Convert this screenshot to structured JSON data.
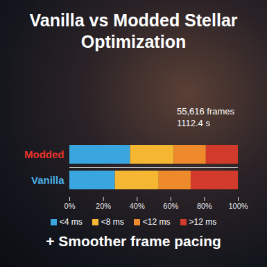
{
  "chart_data": {
    "type": "bar",
    "title": "Vanilla vs Modded Stellar Optimization",
    "annotations": [
      "55,616 frames",
      "1112.4 s"
    ],
    "caption": "+ Smoother frame pacing",
    "orientation": "horizontal",
    "stacked": true,
    "legend": "bottom",
    "categories": [
      "Modded",
      "Vanilla"
    ],
    "series": [
      {
        "name": "<4 ms",
        "color": "#3aa6e0",
        "values": [
          36,
          27
        ]
      },
      {
        "name": "<8 ms",
        "color": "#f5b731",
        "values": [
          26,
          26
        ]
      },
      {
        "name": "<12 ms",
        "color": "#ef8a2c",
        "values": [
          19,
          19
        ]
      },
      {
        "name": ">12 ms",
        "color": "#d23b2b",
        "values": [
          19,
          28
        ]
      }
    ],
    "xlim": [
      0,
      100
    ],
    "xticks": [
      {
        "value": 0,
        "label": "0%"
      },
      {
        "value": 20,
        "label": "20%"
      },
      {
        "value": 40,
        "label": "40%"
      },
      {
        "value": 60,
        "label": "60%"
      },
      {
        "value": 80,
        "label": "80%"
      },
      {
        "value": 100,
        "label": "100%"
      }
    ]
  }
}
